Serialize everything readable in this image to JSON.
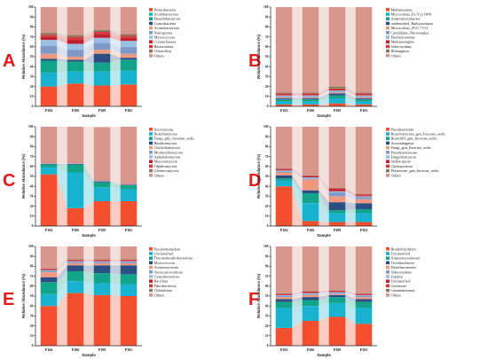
{
  "figure": {
    "panel_letters": [
      "A",
      "B",
      "C",
      "D",
      "E",
      "F"
    ]
  },
  "chart_data": [
    {
      "panel": "A",
      "type": "bar",
      "stacked": true,
      "categories": [
        "P104",
        "P206",
        "P309",
        "P302"
      ],
      "xlabel": "Sample",
      "ylabel": "Relative Abundance (%)",
      "ylim": [
        0,
        100
      ],
      "yticks": [
        "0",
        "10",
        "20",
        "30",
        "40",
        "50",
        "60",
        "70",
        "80",
        "90",
        "100"
      ],
      "legend_position": "right",
      "series": [
        {
          "name": "Proteobacteria",
          "color": "#f4502f",
          "values": [
            20,
            23,
            21,
            22
          ]
        },
        {
          "name": "Acidobacteriota",
          "color": "#19b3cf",
          "values": [
            14,
            12,
            14,
            14
          ]
        },
        {
          "name": "Desulfobacterota",
          "color": "#12a38b",
          "values": [
            12,
            10,
            9,
            11
          ]
        },
        {
          "name": "Cyanobacteria",
          "color": "#2c4f82",
          "values": [
            2,
            2,
            9,
            2
          ]
        },
        {
          "name": "Actinobacteriota",
          "color": "#ef9a80",
          "values": [
            5,
            3,
            4,
            4
          ]
        },
        {
          "name": "Nitrospirota",
          "color": "#7f9ac8",
          "values": [
            8,
            7,
            7,
            7
          ]
        },
        {
          "name": "Myxococcota",
          "color": "#9bbfe3",
          "values": [
            6,
            6,
            5,
            6
          ]
        },
        {
          "name": "Crenarchaeota",
          "color": "#c12030",
          "values": [
            3,
            4,
            4,
            3
          ]
        },
        {
          "name": "Bacteroidota",
          "color": "#d8383b",
          "values": [
            2,
            3,
            2,
            2
          ]
        },
        {
          "name": "Chloroflexi",
          "color": "#8a7a62",
          "values": [
            2,
            2,
            2,
            2
          ]
        },
        {
          "name": "Others",
          "color": "#d8978c",
          "values": [
            26,
            28,
            23,
            27
          ]
        }
      ]
    },
    {
      "panel": "B",
      "type": "bar",
      "stacked": true,
      "categories": [
        "P104",
        "P206",
        "P309",
        "P302"
      ],
      "xlabel": "Sample",
      "ylabel": "Relative Abundance (%)",
      "ylim": [
        0,
        100
      ],
      "yticks": [
        "0",
        "10",
        "20",
        "30",
        "40",
        "50",
        "60",
        "70",
        "80",
        "90",
        "100"
      ],
      "legend_position": "right",
      "series": [
        {
          "name": "Methanosaeta",
          "color": "#f4502f",
          "values": [
            2,
            2,
            3,
            2
          ]
        },
        {
          "name": "Microcoleus_Es-Yyy1400",
          "color": "#19b3cf",
          "values": [
            3,
            3,
            5,
            3
          ]
        },
        {
          "name": "Anaeromyxobacter",
          "color": "#12a38b",
          "values": [
            2,
            2,
            3,
            2
          ]
        },
        {
          "name": "unidentified_Bathyarchaeia",
          "color": "#2c4f82",
          "values": [
            1,
            1,
            2,
            1
          ]
        },
        {
          "name": "Microcoleus_PCC-7113",
          "color": "#ef9a80",
          "values": [
            1,
            1,
            1,
            1
          ]
        },
        {
          "name": "Candidatus_Nitrosotalea",
          "color": "#7f9ac8",
          "values": [
            1,
            1,
            1,
            1
          ]
        },
        {
          "name": "Dechloromonas",
          "color": "#9bbfe3",
          "values": [
            1,
            1,
            1,
            1
          ]
        },
        {
          "name": "Methanoregula",
          "color": "#c12030",
          "values": [
            1,
            1,
            1,
            1
          ]
        },
        {
          "name": "Sideroxydans",
          "color": "#d8383b",
          "values": [
            1,
            1,
            1,
            1
          ]
        },
        {
          "name": "Haliangium",
          "color": "#8a7a62",
          "values": [
            1,
            1,
            2,
            1
          ]
        },
        {
          "name": "Others",
          "color": "#d8978c",
          "values": [
            86,
            86,
            80,
            86
          ]
        }
      ]
    },
    {
      "panel": "C",
      "type": "bar",
      "stacked": true,
      "categories": [
        "P104",
        "P206",
        "P309",
        "P302"
      ],
      "xlabel": "Sample",
      "ylabel": "Relative Abundance (%)",
      "ylim": [
        0,
        100
      ],
      "yticks": [
        "0",
        "10",
        "20",
        "30",
        "40",
        "50",
        "60",
        "70",
        "80",
        "90",
        "100"
      ],
      "legend_position": "right",
      "series": [
        {
          "name": "Ascomycota",
          "color": "#f4502f",
          "values": [
            52,
            18,
            25,
            25
          ]
        },
        {
          "name": "Rozellomycota",
          "color": "#19b3cf",
          "values": [
            7,
            36,
            14,
            12
          ]
        },
        {
          "name": "Fungi_phy_Incertae_sedis",
          "color": "#12a38b",
          "values": [
            3,
            8,
            5,
            4
          ]
        },
        {
          "name": "Basidiomycota",
          "color": "#2c4f82",
          "values": [
            0.5,
            0.5,
            1,
            0.5
          ]
        },
        {
          "name": "Chytridiomycota",
          "color": "#ef9a80",
          "values": [
            0.3,
            0.3,
            0.3,
            0.3
          ]
        },
        {
          "name": "Mortierellomycota",
          "color": "#7f9ac8",
          "values": [
            0.3,
            0.3,
            0.3,
            0.3
          ]
        },
        {
          "name": "Aphelidiomycota",
          "color": "#9bbfe3",
          "values": [
            0.2,
            0.2,
            0.2,
            0.2
          ]
        },
        {
          "name": "Mucoromycota",
          "color": "#c12030",
          "values": [
            0.2,
            0.2,
            0.2,
            0.2
          ]
        },
        {
          "name": "Olpidiomycota",
          "color": "#d8383b",
          "values": [
            0.2,
            0.2,
            0.2,
            0.2
          ]
        },
        {
          "name": "Glomeromycota",
          "color": "#8a7a62",
          "values": [
            0.1,
            0.1,
            0.1,
            0.1
          ]
        },
        {
          "name": "Others",
          "color": "#d8978c",
          "values": [
            36.2,
            36.2,
            53.4,
            57.2
          ]
        }
      ]
    },
    {
      "panel": "D",
      "type": "bar",
      "stacked": true,
      "categories": [
        "P104",
        "P206",
        "P309",
        "P302"
      ],
      "xlabel": "Sample",
      "ylabel": "Relative Abundance (%)",
      "ylim": [
        0,
        100
      ],
      "yticks": [
        "0",
        "10",
        "20",
        "30",
        "40",
        "50",
        "60",
        "70",
        "80",
        "90",
        "100"
      ],
      "legend_position": "right",
      "series": [
        {
          "name": "Pseudeurotium",
          "color": "#f4502f",
          "values": [
            40,
            5,
            4,
            4
          ]
        },
        {
          "name": "Rozellomycota_gen_Incertae_sedis",
          "color": "#19b3cf",
          "values": [
            6,
            18,
            9,
            9
          ]
        },
        {
          "name": "Branch03_gen_Incertae_sedis",
          "color": "#12a38b",
          "values": [
            2,
            10,
            3,
            4
          ]
        },
        {
          "name": "Acrostalagmus",
          "color": "#2c4f82",
          "values": [
            3,
            3,
            8,
            6
          ]
        },
        {
          "name": "Fungi_gen_Incertae_sedis",
          "color": "#ef9a80",
          "values": [
            3,
            11,
            6,
            4
          ]
        },
        {
          "name": "Pseudeurotiaceae",
          "color": "#7f9ac8",
          "values": [
            1,
            1,
            4,
            2
          ]
        },
        {
          "name": "Fungidiomyzota",
          "color": "#9bbfe3",
          "values": [
            1,
            1,
            1,
            1
          ]
        },
        {
          "name": "Stellatospora",
          "color": "#c12030",
          "values": [
            1,
            1,
            2,
            1
          ]
        },
        {
          "name": "Cladosporium",
          "color": "#d8383b",
          "values": [
            0.5,
            0.5,
            1,
            1
          ]
        },
        {
          "name": "Pezizaceae_gen_Incertae_sedis",
          "color": "#8a7a62",
          "values": [
            0.5,
            0.5,
            0.5,
            0.5
          ]
        },
        {
          "name": "Others",
          "color": "#d8978c",
          "values": [
            42,
            49,
            61.5,
            67.5
          ]
        }
      ]
    },
    {
      "panel": "E",
      "type": "bar",
      "stacked": true,
      "categories": [
        "P104",
        "P206",
        "P309",
        "P302"
      ],
      "xlabel": "Sample",
      "ylabel": "Relative Abundance (%)",
      "ylim": [
        0,
        100
      ],
      "yticks": [
        "0",
        "10",
        "20",
        "30",
        "40",
        "50",
        "60",
        "70",
        "80",
        "90",
        "100"
      ],
      "legend_position": "right",
      "series": [
        {
          "name": "Pseudomonadota",
          "color": "#f4502f",
          "values": [
            40,
            53,
            51,
            50
          ]
        },
        {
          "name": "Unclassified",
          "color": "#19b3cf",
          "values": [
            12,
            12,
            12,
            12
          ]
        },
        {
          "name": "Thermodesulfobacteriota",
          "color": "#12a38b",
          "values": [
            12,
            10,
            10,
            10
          ]
        },
        {
          "name": "Myxococcota",
          "color": "#2c4f82",
          "values": [
            5,
            6,
            8,
            9
          ]
        },
        {
          "name": "Actinomycetota",
          "color": "#ef9a80",
          "values": [
            5,
            2,
            2,
            2
          ]
        },
        {
          "name": "Verrucomicrobiota",
          "color": "#7f9ac8",
          "values": [
            1,
            1,
            1,
            1
          ]
        },
        {
          "name": "Cyanobacteriota",
          "color": "#9bbfe3",
          "values": [
            1,
            1,
            1,
            1
          ]
        },
        {
          "name": "Bacillota",
          "color": "#c12030",
          "values": [
            1,
            1,
            1,
            1
          ]
        },
        {
          "name": "Fibrobacterota",
          "color": "#d8383b",
          "values": [
            0.5,
            0.5,
            0.5,
            0.5
          ]
        },
        {
          "name": "Chlorobiota",
          "color": "#8a7a62",
          "values": [
            0.5,
            0.5,
            0.5,
            0.5
          ]
        },
        {
          "name": "Others",
          "color": "#d8978c",
          "values": [
            22,
            13,
            13,
            13
          ]
        }
      ]
    },
    {
      "panel": "F",
      "type": "bar",
      "stacked": true,
      "categories": [
        "P104",
        "P206",
        "P309",
        "P302"
      ],
      "xlabel": "Sample",
      "ylabel": "Relative Abundance (%)",
      "ylim": [
        0,
        100
      ],
      "yticks": [
        "0",
        "10",
        "20",
        "30",
        "40",
        "50",
        "60",
        "70",
        "80",
        "90",
        "100"
      ],
      "legend_position": "right",
      "series": [
        {
          "name": "Bradyrhizobium",
          "color": "#f4502f",
          "values": [
            18,
            25,
            29,
            22
          ]
        },
        {
          "name": "Unclassified",
          "color": "#19b3cf",
          "values": [
            20,
            15,
            14,
            16
          ]
        },
        {
          "name": "Anaeromyxobacter",
          "color": "#12a38b",
          "values": [
            6,
            6,
            6,
            6
          ]
        },
        {
          "name": "Trichlorobacter",
          "color": "#2c4f82",
          "values": [
            3,
            3,
            2,
            3
          ]
        },
        {
          "name": "Desulfuromonas",
          "color": "#ef9a80",
          "values": [
            2,
            2,
            1,
            2
          ]
        },
        {
          "name": "Sideroxydans",
          "color": "#7f9ac8",
          "values": [
            1,
            1,
            1,
            1
          ]
        },
        {
          "name": "Frankia",
          "color": "#9bbfe3",
          "values": [
            1,
            1,
            1,
            1
          ]
        },
        {
          "name": "Unclassified",
          "color": "#c12030",
          "values": [
            1,
            1,
            1,
            1
          ]
        },
        {
          "name": "Geobacter",
          "color": "#d8383b",
          "values": [
            0.5,
            0.5,
            0.5,
            0.5
          ]
        },
        {
          "name": "Gemmatimonas",
          "color": "#8a7a62",
          "values": [
            0.5,
            0.5,
            0.5,
            0.5
          ]
        },
        {
          "name": "Others",
          "color": "#d8978c",
          "values": [
            47,
            45,
            44,
            47
          ]
        }
      ]
    }
  ]
}
